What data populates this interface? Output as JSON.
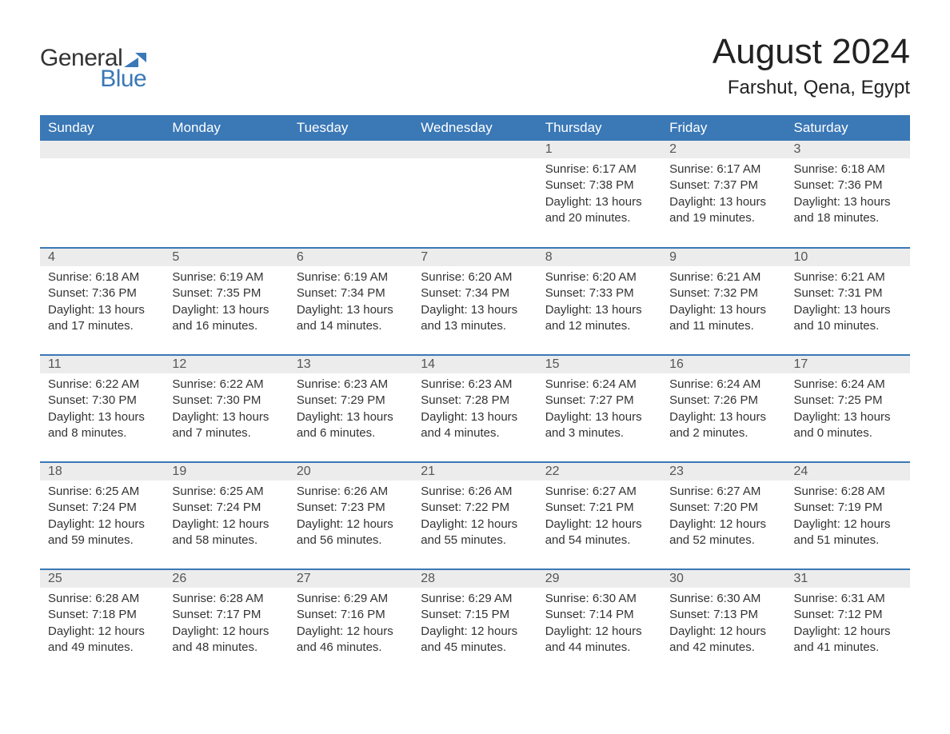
{
  "logo": {
    "text_general": "General",
    "text_blue": "Blue",
    "icon_color": "#3a78b6"
  },
  "header": {
    "month_title": "August 2024",
    "location": "Farshut, Qena, Egypt"
  },
  "calendar": {
    "header_bg": "#3a78b6",
    "header_fg": "#ffffff",
    "daybar_bg": "#ececec",
    "daybar_fg": "#555555",
    "row_border_color": "#3a78b6",
    "body_text_color": "#333333",
    "background_color": "#ffffff",
    "font_family": "Arial",
    "header_fontsize": 17,
    "daynum_fontsize": 16,
    "body_fontsize": 15,
    "day_headers": [
      "Sunday",
      "Monday",
      "Tuesday",
      "Wednesday",
      "Thursday",
      "Friday",
      "Saturday"
    ],
    "weeks": [
      [
        null,
        null,
        null,
        null,
        {
          "n": "1",
          "sunrise": "6:17 AM",
          "sunset": "7:38 PM",
          "day_h": "13",
          "day_m": "20"
        },
        {
          "n": "2",
          "sunrise": "6:17 AM",
          "sunset": "7:37 PM",
          "day_h": "13",
          "day_m": "19"
        },
        {
          "n": "3",
          "sunrise": "6:18 AM",
          "sunset": "7:36 PM",
          "day_h": "13",
          "day_m": "18"
        }
      ],
      [
        {
          "n": "4",
          "sunrise": "6:18 AM",
          "sunset": "7:36 PM",
          "day_h": "13",
          "day_m": "17"
        },
        {
          "n": "5",
          "sunrise": "6:19 AM",
          "sunset": "7:35 PM",
          "day_h": "13",
          "day_m": "16"
        },
        {
          "n": "6",
          "sunrise": "6:19 AM",
          "sunset": "7:34 PM",
          "day_h": "13",
          "day_m": "14"
        },
        {
          "n": "7",
          "sunrise": "6:20 AM",
          "sunset": "7:34 PM",
          "day_h": "13",
          "day_m": "13"
        },
        {
          "n": "8",
          "sunrise": "6:20 AM",
          "sunset": "7:33 PM",
          "day_h": "13",
          "day_m": "12"
        },
        {
          "n": "9",
          "sunrise": "6:21 AM",
          "sunset": "7:32 PM",
          "day_h": "13",
          "day_m": "11"
        },
        {
          "n": "10",
          "sunrise": "6:21 AM",
          "sunset": "7:31 PM",
          "day_h": "13",
          "day_m": "10"
        }
      ],
      [
        {
          "n": "11",
          "sunrise": "6:22 AM",
          "sunset": "7:30 PM",
          "day_h": "13",
          "day_m": "8"
        },
        {
          "n": "12",
          "sunrise": "6:22 AM",
          "sunset": "7:30 PM",
          "day_h": "13",
          "day_m": "7"
        },
        {
          "n": "13",
          "sunrise": "6:23 AM",
          "sunset": "7:29 PM",
          "day_h": "13",
          "day_m": "6"
        },
        {
          "n": "14",
          "sunrise": "6:23 AM",
          "sunset": "7:28 PM",
          "day_h": "13",
          "day_m": "4"
        },
        {
          "n": "15",
          "sunrise": "6:24 AM",
          "sunset": "7:27 PM",
          "day_h": "13",
          "day_m": "3"
        },
        {
          "n": "16",
          "sunrise": "6:24 AM",
          "sunset": "7:26 PM",
          "day_h": "13",
          "day_m": "2"
        },
        {
          "n": "17",
          "sunrise": "6:24 AM",
          "sunset": "7:25 PM",
          "day_h": "13",
          "day_m": "0"
        }
      ],
      [
        {
          "n": "18",
          "sunrise": "6:25 AM",
          "sunset": "7:24 PM",
          "day_h": "12",
          "day_m": "59"
        },
        {
          "n": "19",
          "sunrise": "6:25 AM",
          "sunset": "7:24 PM",
          "day_h": "12",
          "day_m": "58"
        },
        {
          "n": "20",
          "sunrise": "6:26 AM",
          "sunset": "7:23 PM",
          "day_h": "12",
          "day_m": "56"
        },
        {
          "n": "21",
          "sunrise": "6:26 AM",
          "sunset": "7:22 PM",
          "day_h": "12",
          "day_m": "55"
        },
        {
          "n": "22",
          "sunrise": "6:27 AM",
          "sunset": "7:21 PM",
          "day_h": "12",
          "day_m": "54"
        },
        {
          "n": "23",
          "sunrise": "6:27 AM",
          "sunset": "7:20 PM",
          "day_h": "12",
          "day_m": "52"
        },
        {
          "n": "24",
          "sunrise": "6:28 AM",
          "sunset": "7:19 PM",
          "day_h": "12",
          "day_m": "51"
        }
      ],
      [
        {
          "n": "25",
          "sunrise": "6:28 AM",
          "sunset": "7:18 PM",
          "day_h": "12",
          "day_m": "49"
        },
        {
          "n": "26",
          "sunrise": "6:28 AM",
          "sunset": "7:17 PM",
          "day_h": "12",
          "day_m": "48"
        },
        {
          "n": "27",
          "sunrise": "6:29 AM",
          "sunset": "7:16 PM",
          "day_h": "12",
          "day_m": "46"
        },
        {
          "n": "28",
          "sunrise": "6:29 AM",
          "sunset": "7:15 PM",
          "day_h": "12",
          "day_m": "45"
        },
        {
          "n": "29",
          "sunrise": "6:30 AM",
          "sunset": "7:14 PM",
          "day_h": "12",
          "day_m": "44"
        },
        {
          "n": "30",
          "sunrise": "6:30 AM",
          "sunset": "7:13 PM",
          "day_h": "12",
          "day_m": "42"
        },
        {
          "n": "31",
          "sunrise": "6:31 AM",
          "sunset": "7:12 PM",
          "day_h": "12",
          "day_m": "41"
        }
      ]
    ],
    "labels": {
      "sunrise_prefix": "Sunrise: ",
      "sunset_prefix": "Sunset: ",
      "daylight_prefix": "Daylight: ",
      "hours_word": " hours",
      "and_word": "and ",
      "minutes_suffix": " minutes."
    }
  }
}
